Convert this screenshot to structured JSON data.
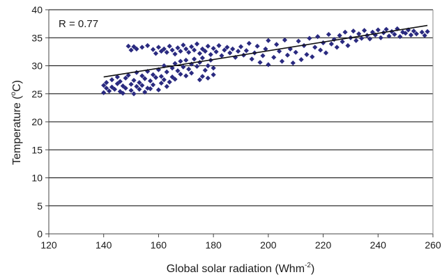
{
  "chart_data": {
    "type": "scatter",
    "annotation": "R = 0.77",
    "xlabel_main": "Global solar radiation (Whm",
    "xlabel_sup": "-2",
    "xlabel_end": ")",
    "ylabel_main": "Temperature (",
    "ylabel_sup": "o",
    "ylabel_end": "C)",
    "xlim": [
      120,
      260
    ],
    "ylim": [
      0,
      40
    ],
    "xticks": [
      120,
      140,
      160,
      180,
      200,
      220,
      240,
      260
    ],
    "yticks": [
      0,
      5,
      10,
      15,
      20,
      25,
      30,
      35,
      40
    ],
    "grid": "horizontal",
    "legend": "none",
    "marker_color": "#2a2a80",
    "trendline": {
      "x": [
        140,
        258
      ],
      "y": [
        28.0,
        37.2
      ],
      "color": "#111111"
    },
    "series": [
      {
        "marker": "diamond",
        "points": [
          [
            140,
            25.2
          ],
          [
            140,
            26.5
          ],
          [
            141,
            27.0
          ],
          [
            141,
            26.0
          ],
          [
            142,
            25.5
          ],
          [
            143,
            27.5
          ],
          [
            143,
            26.2
          ],
          [
            144,
            25.8
          ],
          [
            145,
            26.8
          ],
          [
            145,
            28.0
          ],
          [
            146,
            25.4
          ],
          [
            146,
            27.2
          ],
          [
            147,
            26.4
          ],
          [
            147,
            25.1
          ],
          [
            148,
            27.8
          ],
          [
            148,
            26.0
          ],
          [
            149,
            28.3
          ],
          [
            150,
            26.7
          ],
          [
            150,
            25.6
          ],
          [
            151,
            27.4
          ],
          [
            151,
            25.0
          ],
          [
            152,
            26.3
          ],
          [
            152,
            28.8
          ],
          [
            153,
            25.8
          ],
          [
            153,
            27.0
          ],
          [
            154,
            26.5
          ],
          [
            154,
            28.2
          ],
          [
            155,
            25.3
          ],
          [
            155,
            27.7
          ],
          [
            156,
            26.0
          ],
          [
            156,
            29.0
          ],
          [
            157,
            27.3
          ],
          [
            157,
            25.9
          ],
          [
            158,
            28.4
          ],
          [
            158,
            26.6
          ],
          [
            159,
            27.9
          ],
          [
            160,
            25.7
          ],
          [
            160,
            29.3
          ],
          [
            161,
            26.9
          ],
          [
            161,
            28.1
          ],
          [
            162,
            27.5
          ],
          [
            162,
            30.0
          ],
          [
            163,
            26.3
          ],
          [
            163,
            28.9
          ],
          [
            164,
            27.1
          ],
          [
            165,
            29.6
          ],
          [
            165,
            28.0
          ],
          [
            166,
            30.4
          ],
          [
            166,
            27.6
          ],
          [
            167,
            29.1
          ],
          [
            168,
            28.5
          ],
          [
            168,
            30.8
          ],
          [
            169,
            29.8
          ],
          [
            170,
            28.2
          ],
          [
            170,
            31.0
          ],
          [
            171,
            29.4
          ],
          [
            172,
            30.3
          ],
          [
            172,
            28.7
          ],
          [
            173,
            31.2
          ],
          [
            174,
            29.9
          ],
          [
            175,
            27.5
          ],
          [
            175,
            30.6
          ],
          [
            176,
            28.1
          ],
          [
            176,
            31.4
          ],
          [
            177,
            29.2
          ],
          [
            178,
            30.0
          ],
          [
            178,
            27.8
          ],
          [
            179,
            31.0
          ],
          [
            180,
            29.6
          ],
          [
            180,
            28.4
          ],
          [
            149,
            33.5
          ],
          [
            150,
            32.8
          ],
          [
            151,
            33.4
          ],
          [
            152,
            33.0
          ],
          [
            154,
            33.3
          ],
          [
            156,
            33.6
          ],
          [
            158,
            32.9
          ],
          [
            159,
            32.2
          ],
          [
            160,
            33.3
          ],
          [
            161,
            32.6
          ],
          [
            162,
            33.0
          ],
          [
            163,
            32.4
          ],
          [
            164,
            33.5
          ],
          [
            165,
            32.8
          ],
          [
            166,
            32.1
          ],
          [
            167,
            33.2
          ],
          [
            168,
            32.6
          ],
          [
            169,
            33.7
          ],
          [
            170,
            33.0
          ],
          [
            171,
            32.4
          ],
          [
            172,
            33.4
          ],
          [
            173,
            32.8
          ],
          [
            174,
            33.9
          ],
          [
            175,
            32.2
          ],
          [
            176,
            33.0
          ],
          [
            177,
            32.6
          ],
          [
            178,
            33.5
          ],
          [
            179,
            32.0
          ],
          [
            180,
            33.1
          ],
          [
            181,
            32.5
          ],
          [
            182,
            33.6
          ],
          [
            183,
            31.8
          ],
          [
            184,
            32.8
          ],
          [
            185,
            33.3
          ],
          [
            186,
            32.3
          ],
          [
            187,
            33.0
          ],
          [
            188,
            31.5
          ],
          [
            189,
            32.6
          ],
          [
            190,
            33.4
          ],
          [
            191,
            31.9
          ],
          [
            192,
            32.7
          ],
          [
            193,
            34.0
          ],
          [
            194,
            31.2
          ],
          [
            195,
            32.3
          ],
          [
            196,
            33.5
          ],
          [
            197,
            30.6
          ],
          [
            198,
            31.8
          ],
          [
            199,
            33.0
          ],
          [
            200,
            34.5
          ],
          [
            200,
            30.2
          ],
          [
            202,
            31.5
          ],
          [
            203,
            33.8
          ],
          [
            204,
            32.6
          ],
          [
            205,
            30.8
          ],
          [
            206,
            34.6
          ],
          [
            207,
            31.9
          ],
          [
            208,
            33.0
          ],
          [
            209,
            30.5
          ],
          [
            210,
            32.4
          ],
          [
            211,
            34.4
          ],
          [
            212,
            31.1
          ],
          [
            213,
            33.6
          ],
          [
            214,
            32.0
          ],
          [
            215,
            34.9
          ],
          [
            216,
            31.6
          ],
          [
            217,
            33.3
          ],
          [
            218,
            35.2
          ],
          [
            219,
            32.8
          ],
          [
            220,
            34.1
          ],
          [
            221,
            32.3
          ],
          [
            222,
            35.6
          ],
          [
            223,
            33.9
          ],
          [
            224,
            34.7
          ],
          [
            225,
            33.3
          ],
          [
            226,
            35.4
          ],
          [
            227,
            34.3
          ],
          [
            228,
            36.0
          ],
          [
            229,
            33.6
          ],
          [
            230,
            35.0
          ],
          [
            231,
            36.2
          ],
          [
            232,
            34.5
          ],
          [
            233,
            35.7
          ],
          [
            234,
            34.9
          ],
          [
            235,
            36.3
          ],
          [
            236,
            35.4
          ],
          [
            237,
            34.8
          ],
          [
            238,
            36.0
          ],
          [
            239,
            35.5
          ],
          [
            240,
            36.4
          ],
          [
            241,
            35.0
          ],
          [
            242,
            35.9
          ],
          [
            243,
            36.5
          ],
          [
            244,
            35.3
          ],
          [
            245,
            36.1
          ],
          [
            246,
            35.6
          ],
          [
            247,
            36.6
          ],
          [
            248,
            35.2
          ],
          [
            249,
            36.0
          ],
          [
            250,
            35.8
          ],
          [
            251,
            36.4
          ],
          [
            252,
            35.5
          ],
          [
            253,
            36.2
          ],
          [
            254,
            35.7
          ],
          [
            256,
            36.0
          ],
          [
            257,
            35.4
          ],
          [
            258,
            36.1
          ]
        ]
      }
    ]
  }
}
